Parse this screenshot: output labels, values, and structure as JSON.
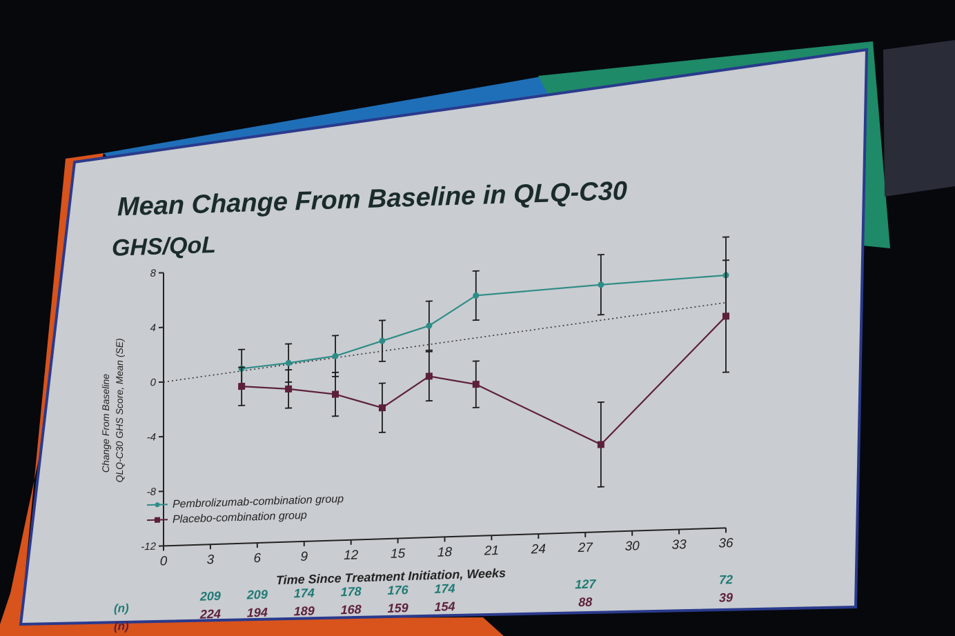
{
  "slide": {
    "title_line1": "Mean Change From Baseline in QLQ-C30",
    "title_line2": "GHS/QoL"
  },
  "colors": {
    "pembrolizumab": "#2e8c87",
    "placebo": "#5c1f3c",
    "accent_orange": "#d9531c",
    "accent_blue": "#1f6fb8",
    "accent_green": "#1e8a67"
  },
  "chart_data": {
    "type": "line",
    "title": "Mean Change From Baseline in QLQ-C30 GHS/QoL",
    "xlabel": "Time Since Treatment Initiation, Weeks",
    "ylabel_line1": "Change From Baseline",
    "ylabel_line2": "QLQ-C30 GHS Score, Mean (SE)",
    "xlim": [
      0,
      36
    ],
    "ylim": [
      -12,
      8
    ],
    "x_ticks": [
      0,
      3,
      6,
      9,
      12,
      15,
      18,
      21,
      24,
      27,
      30,
      33,
      36
    ],
    "y_ticks": [
      8,
      4,
      0,
      -4,
      -8,
      -12
    ],
    "legend_position": "bottom-left",
    "series": [
      {
        "name": "Pembrolizumab-combination group",
        "x": [
          5,
          8,
          11,
          14,
          17,
          20,
          28,
          36
        ],
        "values": [
          0.8,
          1.1,
          1.5,
          2.5,
          3.5,
          5.6,
          6.1,
          6.5
        ],
        "se": [
          1.4,
          1.4,
          1.5,
          1.5,
          1.8,
          1.8,
          2.2,
          2.8
        ],
        "n": [
          "209",
          "209",
          "174",
          "178",
          "176",
          "174",
          "127",
          "72"
        ]
      },
      {
        "name": "Placebo-combination group",
        "x": [
          5,
          8,
          11,
          14,
          17,
          20,
          28,
          36
        ],
        "values": [
          -0.5,
          -0.8,
          -1.3,
          -2.4,
          -0.2,
          -0.9,
          -5.6,
          3.5
        ],
        "se": [
          1.4,
          1.4,
          1.6,
          1.8,
          1.8,
          1.7,
          3.1,
          4.1
        ],
        "n": [
          "224",
          "194",
          "189",
          "168",
          "159",
          "154",
          "88",
          "39"
        ]
      }
    ],
    "n_label": "(n)",
    "reference_line": {
      "style": "dotted",
      "from": [
        0,
        0
      ],
      "to": [
        36,
        4.5
      ]
    }
  }
}
